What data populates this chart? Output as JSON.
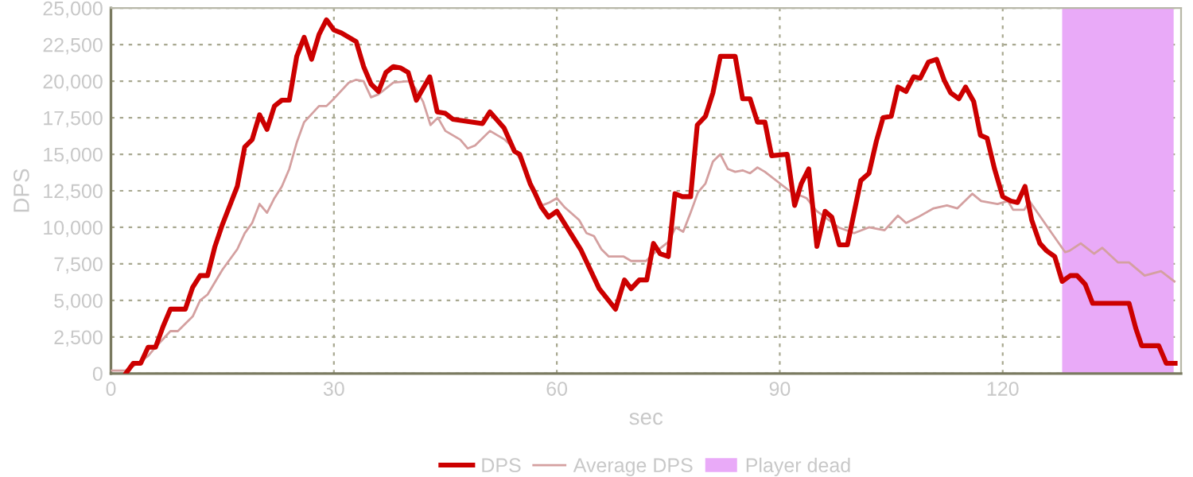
{
  "chart_data": {
    "type": "line",
    "xlabel": "sec",
    "ylabel": "DPS",
    "xlim": [
      0,
      144
    ],
    "xticks": [
      0,
      30,
      60,
      90,
      120
    ],
    "ylim": [
      0,
      25000
    ],
    "yticks": [
      0,
      {
        "value": 2500,
        "label": "2,500"
      },
      {
        "value": 5000,
        "label": "5,000"
      },
      {
        "value": 7500,
        "label": "7,500"
      },
      {
        "value": 10000,
        "label": "10,000"
      },
      {
        "value": 12500,
        "label": "12,500"
      },
      {
        "value": 15000,
        "label": "15,000"
      },
      {
        "value": 17500,
        "label": "17,500"
      },
      {
        "value": 20000,
        "label": "20,000"
      },
      {
        "value": 22500,
        "label": "22,500"
      },
      {
        "value": 25000,
        "label": "25,000"
      }
    ],
    "grid": true,
    "legend": "bottom",
    "marker": "none",
    "line_style": "solid",
    "series": [
      {
        "name": "Average DPS",
        "color": "#d4a0a0",
        "x": [
          0,
          2,
          3,
          5,
          6,
          8,
          9,
          11,
          12,
          13,
          15,
          17,
          18,
          19,
          20,
          21,
          22,
          23,
          24,
          25,
          26,
          28,
          29,
          30,
          32,
          33,
          34,
          35,
          36,
          38,
          40,
          41,
          42,
          43,
          44,
          45,
          47,
          48,
          49,
          51,
          53,
          54,
          55,
          57,
          58,
          59,
          60,
          61,
          63,
          64,
          65,
          66,
          67,
          69,
          70,
          72,
          73,
          75,
          76,
          77,
          78,
          79,
          80,
          81,
          82,
          83,
          84,
          85,
          86,
          87,
          88,
          91.3,
          93.6,
          95,
          97.9,
          100,
          102,
          104.1,
          105.9,
          107,
          108.6,
          110.7,
          112.5,
          113.9,
          115.9,
          117.1,
          119.3,
          120.7,
          121.4,
          122.9,
          123.6,
          126.6,
          128.4,
          129,
          130.5,
          132.3,
          133.4,
          135.5,
          137,
          139.1,
          141.3,
          143.1
        ],
        "values": [
          200,
          200,
          500,
          1200,
          1800,
          2900,
          2900,
          3900,
          5000,
          5400,
          7100,
          8500,
          9600,
          10300,
          11600,
          11000,
          12000,
          12800,
          14000,
          15800,
          17200,
          18300,
          18300,
          18800,
          19900,
          20100,
          20000,
          18900,
          19100,
          19900,
          20000,
          19500,
          18600,
          17000,
          17500,
          16600,
          16000,
          15400,
          15600,
          16600,
          16000,
          15500,
          14700,
          12500,
          11500,
          11700,
          12000,
          11400,
          10500,
          9600,
          9400,
          8500,
          8000,
          8000,
          7700,
          7700,
          8200,
          9000,
          10000,
          9700,
          11000,
          12400,
          13000,
          14500,
          15000,
          14000,
          13800,
          13900,
          13700,
          14100,
          13800,
          12500,
          12000,
          11100,
          10000,
          9600,
          10000,
          9800,
          10800,
          10300,
          10700,
          11300,
          11500,
          11300,
          12300,
          11800,
          11600,
          11800,
          11200,
          11200,
          11800,
          9600,
          8300,
          8400,
          8900,
          8200,
          8600,
          7600,
          7600,
          6700,
          7000,
          6300
        ]
      },
      {
        "name": "DPS",
        "color": "#cc0000",
        "x": [
          2,
          3,
          4,
          5,
          6,
          7,
          8,
          9,
          10,
          11,
          12,
          13,
          14,
          15,
          16,
          17,
          18,
          19,
          20,
          21,
          22,
          23,
          24,
          25,
          26,
          27,
          28,
          29,
          30,
          31,
          32,
          33,
          34,
          35,
          36,
          37,
          38,
          39,
          40,
          41.1,
          42.9,
          43.9,
          45,
          46,
          50,
          51,
          52.9,
          54.3,
          55,
          56.4,
          57,
          57.9,
          58.9,
          60,
          63.2,
          65.7,
          67.9,
          69.1,
          70,
          71.1,
          72.1,
          73,
          73.9,
          75,
          75.9,
          76.9,
          78,
          78.9,
          80,
          81,
          82,
          84,
          85,
          86,
          87,
          88,
          88.9,
          91,
          92,
          92.9,
          93.9,
          95,
          96.1,
          97,
          98,
          99.1,
          100.9,
          102,
          103,
          103.9,
          105,
          105.9,
          107,
          108,
          108.9,
          110,
          111.1,
          112.1,
          113,
          114.1,
          115,
          116.1,
          117,
          117.9,
          118.9,
          120,
          121.1,
          122,
          123,
          123.9,
          125,
          125.9,
          127,
          128,
          129.1,
          130,
          131.1,
          132.1,
          133.6,
          137,
          137.9,
          138.7,
          141,
          142,
          143.2
        ],
        "values": [
          0,
          700,
          700,
          1800,
          1800,
          3200,
          4400,
          4400,
          4400,
          5900,
          6700,
          6700,
          8700,
          10200,
          11500,
          12800,
          15500,
          16000,
          17700,
          16700,
          18300,
          18700,
          18700,
          21700,
          23000,
          21500,
          23200,
          24200,
          23500,
          23300,
          23000,
          22700,
          21000,
          19800,
          19300,
          20600,
          21000,
          20900,
          20600,
          18700,
          20300,
          17900,
          17800,
          17400,
          17100,
          17900,
          16800,
          15200,
          15000,
          13000,
          12400,
          11400,
          10700,
          11100,
          8500,
          5800,
          4400,
          6400,
          5800,
          6400,
          6400,
          8900,
          8200,
          8000,
          12300,
          12100,
          12100,
          17000,
          17600,
          19200,
          21700,
          21700,
          18800,
          18800,
          17200,
          17200,
          14900,
          15000,
          11500,
          13000,
          14000,
          8700,
          11100,
          10700,
          8800,
          8800,
          13200,
          13700,
          15900,
          17500,
          17600,
          19600,
          19300,
          20300,
          20200,
          21300,
          21500,
          20100,
          19200,
          18800,
          19600,
          18600,
          16300,
          16100,
          14000,
          12100,
          11800,
          11700,
          12800,
          10500,
          8900,
          8400,
          8000,
          6300,
          6700,
          6700,
          6100,
          4800,
          4800,
          4800,
          3100,
          1900,
          1900,
          700,
          700
        ]
      }
    ],
    "bands": [
      {
        "axis": "x",
        "from": 128,
        "to": 143,
        "label": "Player dead",
        "color": "#e9aaf8"
      }
    ]
  }
}
